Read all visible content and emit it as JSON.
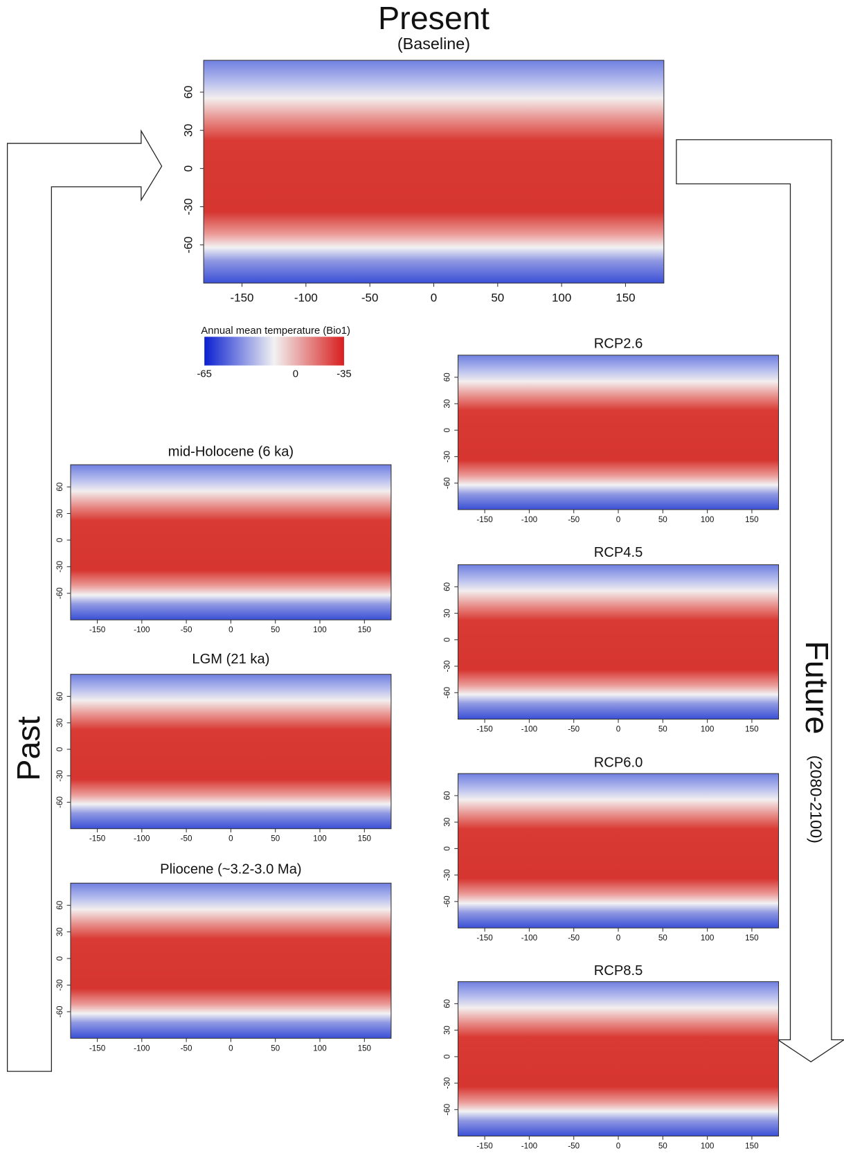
{
  "past_label": "Past",
  "future_label": "Future",
  "future_period": "(2080-2100)",
  "legend": {
    "title": "Annual mean temperature (Bio1)",
    "labels": [
      -65,
      0,
      -35
    ],
    "colors": [
      "#0a1fd0",
      "#f2f2f2",
      "#d81e1e"
    ]
  },
  "chart_data": [
    {
      "type": "map",
      "title": "Present",
      "subtitle": "(Baseline)",
      "xlim": [
        -180,
        180
      ],
      "ylim": [
        -90,
        85
      ],
      "xticks": [
        -150,
        -100,
        -50,
        0,
        50,
        100,
        150
      ],
      "yticks": [
        -60,
        -30,
        0,
        30,
        60
      ]
    },
    {
      "type": "map",
      "title": "mid-Holocene (6 ka)",
      "xlim": [
        -180,
        180
      ],
      "ylim": [
        -90,
        85
      ],
      "xticks": [
        -150,
        -100,
        -50,
        0,
        50,
        100,
        150
      ],
      "yticks": [
        -60,
        -30,
        0,
        30,
        60
      ]
    },
    {
      "type": "map",
      "title": "LGM (21 ka)",
      "xlim": [
        -180,
        180
      ],
      "ylim": [
        -90,
        85
      ],
      "xticks": [
        -150,
        -100,
        -50,
        0,
        50,
        100,
        150
      ],
      "yticks": [
        -60,
        -30,
        0,
        30,
        60
      ]
    },
    {
      "type": "map",
      "title": "Pliocene (~3.2-3.0 Ma)",
      "xlim": [
        -180,
        180
      ],
      "ylim": [
        -90,
        85
      ],
      "xticks": [
        -150,
        -100,
        -50,
        0,
        50,
        100,
        150
      ],
      "yticks": [
        -60,
        -30,
        0,
        30,
        60
      ]
    },
    {
      "type": "map",
      "title": "RCP2.6",
      "xlim": [
        -180,
        180
      ],
      "ylim": [
        -90,
        85
      ],
      "xticks": [
        -150,
        -100,
        -50,
        0,
        50,
        100,
        150
      ],
      "yticks": [
        -60,
        -30,
        0,
        30,
        60
      ]
    },
    {
      "type": "map",
      "title": "RCP4.5",
      "xlim": [
        -180,
        180
      ],
      "ylim": [
        -90,
        85
      ],
      "xticks": [
        -150,
        -100,
        -50,
        0,
        50,
        100,
        150
      ],
      "yticks": [
        -60,
        -30,
        0,
        30,
        60
      ]
    },
    {
      "type": "map",
      "title": "RCP6.0",
      "xlim": [
        -180,
        180
      ],
      "ylim": [
        -90,
        85
      ],
      "xticks": [
        -150,
        -100,
        -50,
        0,
        50,
        100,
        150
      ],
      "yticks": [
        -60,
        -30,
        0,
        30,
        60
      ]
    },
    {
      "type": "map",
      "title": "RCP8.5",
      "xlim": [
        -180,
        180
      ],
      "ylim": [
        -90,
        85
      ],
      "xticks": [
        -150,
        -100,
        -50,
        0,
        50,
        100,
        150
      ],
      "yticks": [
        -60,
        -30,
        0,
        30,
        60
      ]
    }
  ]
}
